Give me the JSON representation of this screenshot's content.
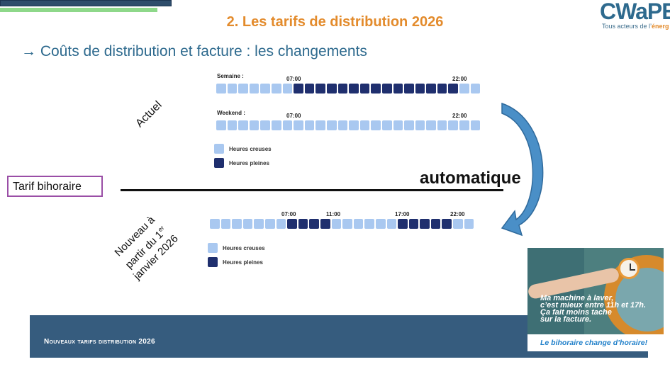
{
  "slide": {
    "title": "2. Les tarifs de distribution 2026",
    "subtitle": "→ Coûts de distribution et facture : les changements"
  },
  "logo": {
    "word": "CWaPE",
    "tagline_start": "Tous acteurs de l’",
    "tagline_end": "énerg"
  },
  "current": {
    "label": "Actuel",
    "weekday": {
      "label": "Semaine :",
      "time_start": "07:00",
      "time_end": "22:00",
      "cells": [
        0,
        0,
        0,
        0,
        0,
        0,
        0,
        1,
        1,
        1,
        1,
        1,
        1,
        1,
        1,
        1,
        1,
        1,
        1,
        1,
        1,
        1,
        0,
        0
      ]
    },
    "weekend": {
      "label": "Weekend :",
      "time_start": "07:00",
      "time_end": "22:00",
      "cells": [
        0,
        0,
        0,
        0,
        0,
        0,
        0,
        0,
        0,
        0,
        0,
        0,
        0,
        0,
        0,
        0,
        0,
        0,
        0,
        0,
        0,
        0,
        0,
        0
      ]
    },
    "legend": {
      "off_peak": "Heures creuses",
      "peak": "Heures pleines"
    }
  },
  "new": {
    "label_line1": "Nouveau à",
    "label_line2": "partir du 1",
    "label_sup": "er",
    "label_line3": "janvier 2026",
    "times": [
      "07:00",
      "11:00",
      "17:00",
      "22:00"
    ],
    "cells": [
      0,
      0,
      0,
      0,
      0,
      0,
      0,
      1,
      1,
      1,
      1,
      0,
      0,
      0,
      0,
      0,
      0,
      1,
      1,
      1,
      1,
      1,
      0,
      0
    ],
    "legend": {
      "off_peak": "Heures creuses",
      "peak": "Heures pleines"
    }
  },
  "tariff": {
    "label": "Tarif bihoraire",
    "transition": "automatique"
  },
  "footer": {
    "text": "Nouveaux tarifs distribution 2026"
  },
  "ad": {
    "line1": "Ma machine à laver,",
    "line2": "c’est mieux entre 11h et 17h.",
    "line3": "Ça fait moins tache",
    "line4": "sur la facture.",
    "bottom": "Le bihoraire change d’horaire!"
  },
  "colors": {
    "off_peak": "#a9c8f0",
    "peak": "#1f2f6e",
    "title": "#e38b2c",
    "footer": "#365c7e"
  }
}
